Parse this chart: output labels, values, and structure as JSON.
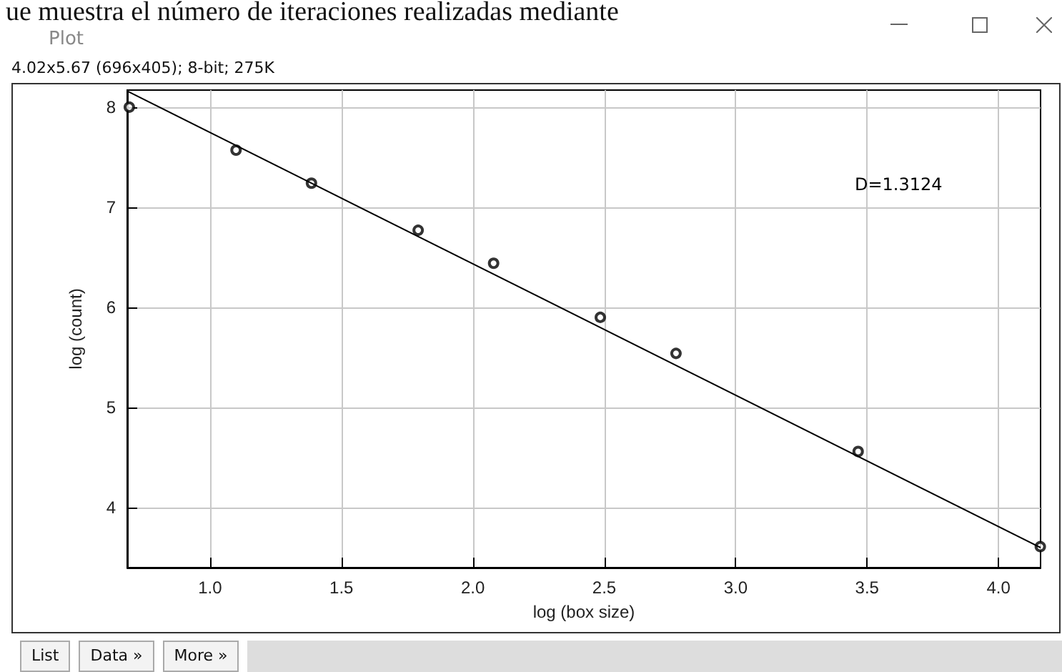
{
  "chart_data": {
    "type": "scatter",
    "xlabel": "log (box size)",
    "ylabel": "log (count)",
    "annotations": [
      "ue muestra el número de iteraciones realizadas mediante",
      "Plot",
      "4.02x5.67   (696x405); 8-bit; 275K",
      "D=1.3124",
      "List",
      "Data »",
      "More »"
    ],
    "series": [
      {
        "color": "#000000",
        "x": [
          0.693,
          1.099,
          1.386,
          1.792,
          2.079,
          2.485,
          2.773,
          3.466,
          4.159
        ],
        "values": [
          8.0,
          7.57,
          7.24,
          6.77,
          6.44,
          5.9,
          5.54,
          4.56,
          3.61
        ]
      },
      {
        "type": "line",
        "marker": "none",
        "color": "#000000",
        "x": [
          0.685,
          4.16
        ],
        "values": [
          8.16,
          3.6
        ]
      }
    ],
    "xlim": [
      0.685,
      4.16
    ],
    "ylim": [
      3.4,
      8.17
    ],
    "xticks": [
      {
        "value": 1,
        "label": "1.0"
      },
      {
        "value": 1.5,
        "label": "1.5"
      },
      {
        "value": 2,
        "label": "2.0"
      },
      {
        "value": 2.5,
        "label": "2.5"
      },
      {
        "value": 3,
        "label": "3.0"
      },
      {
        "value": 3.5,
        "label": "3.5"
      },
      {
        "value": 4,
        "label": "4.0"
      }
    ],
    "yticks": [
      4,
      5,
      6,
      7,
      8
    ],
    "grid": true,
    "marker": "circle",
    "line_style": "solid"
  }
}
